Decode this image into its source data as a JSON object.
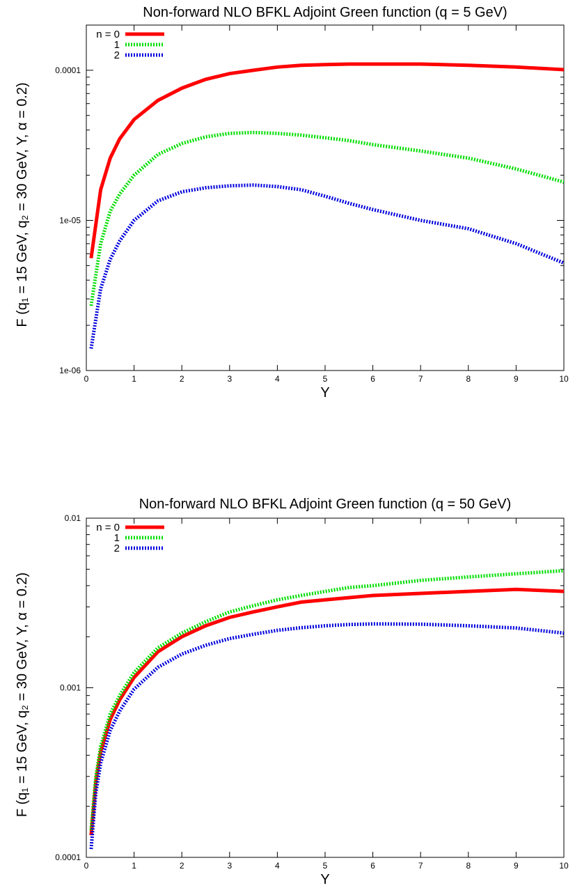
{
  "chart_data": [
    {
      "type": "line",
      "title": "Non-forward NLO BFKL Adjoint Green function (q = 5 GeV)",
      "xlabel": "Y",
      "ylabel": "F (q₁ = 15 GeV, q₂ = 30 GeV, Y, α = 0.2)",
      "xlim": [
        0,
        10
      ],
      "ylim": [
        1e-06,
        0.0002
      ],
      "yscale": "log",
      "grid": false,
      "legend_position": "top-left",
      "xticks": [
        0,
        1,
        2,
        3,
        4,
        5,
        6,
        7,
        8,
        9,
        10
      ],
      "xtick_labels": [
        "0",
        "1",
        "2",
        "3",
        "4",
        "5",
        "6",
        "7",
        "8",
        "9",
        "10"
      ],
      "yticks": [
        1e-06,
        1e-05,
        0.0001
      ],
      "ytick_labels": [
        "1e-06",
        "1e-05",
        "0.0001"
      ],
      "series": [
        {
          "name": "n = 0",
          "color": "#ff0000",
          "style": "solid",
          "x": [
            0.1,
            0.3,
            0.5,
            0.7,
            1.0,
            1.5,
            2.0,
            2.5,
            3.0,
            3.5,
            4.0,
            4.5,
            5.0,
            5.5,
            6.0,
            7.0,
            8.0,
            9.0,
            10.0
          ],
          "y": [
            5.6e-06,
            1.6e-05,
            2.6e-05,
            3.5e-05,
            4.7e-05,
            6.3e-05,
            7.6e-05,
            8.7e-05,
            9.5e-05,
            0.0001,
            0.000105,
            0.000108,
            0.000109,
            0.00011,
            0.00011,
            0.00011,
            0.000108,
            0.000105,
            0.000101
          ]
        },
        {
          "name": "1",
          "color": "#00dd00",
          "style": "dotted",
          "x": [
            0.1,
            0.3,
            0.5,
            0.7,
            1.0,
            1.5,
            2.0,
            2.5,
            3.0,
            3.5,
            4.0,
            4.5,
            5.0,
            5.5,
            6.0,
            7.0,
            8.0,
            9.0,
            10.0
          ],
          "y": [
            2.7e-06,
            7e-06,
            1.15e-05,
            1.5e-05,
            2e-05,
            2.75e-05,
            3.25e-05,
            3.6e-05,
            3.8e-05,
            3.85e-05,
            3.8e-05,
            3.7e-05,
            3.55e-05,
            3.4e-05,
            3.2e-05,
            2.9e-05,
            2.6e-05,
            2.2e-05,
            1.8e-05
          ]
        },
        {
          "name": "2",
          "color": "#0000dd",
          "style": "dotted",
          "x": [
            0.1,
            0.3,
            0.5,
            0.7,
            1.0,
            1.5,
            2.0,
            2.5,
            3.0,
            3.5,
            4.0,
            4.5,
            5.0,
            5.5,
            6.0,
            7.0,
            8.0,
            9.0,
            10.0
          ],
          "y": [
            1.4e-06,
            3.5e-06,
            5.5e-06,
            7.3e-06,
            1e-05,
            1.35e-05,
            1.55e-05,
            1.65e-05,
            1.7e-05,
            1.72e-05,
            1.68e-05,
            1.6e-05,
            1.45e-05,
            1.3e-05,
            1.18e-05,
            1e-05,
            8.8e-06,
            7e-06,
            5.2e-06
          ]
        }
      ]
    },
    {
      "type": "line",
      "title": "Non-forward NLO BFKL Adjoint Green function (q = 50 GeV)",
      "xlabel": "Y",
      "ylabel": "F (q₁ = 15 GeV, q₂ = 30 GeV, Y, α = 0.2)",
      "xlim": [
        0,
        10
      ],
      "ylim": [
        0.0001,
        0.01
      ],
      "yscale": "log",
      "grid": false,
      "legend_position": "top-left",
      "xticks": [
        0,
        1,
        2,
        3,
        4,
        5,
        6,
        7,
        8,
        9,
        10
      ],
      "xtick_labels": [
        "0",
        "1",
        "2",
        "3",
        "4",
        "5",
        "6",
        "7",
        "8",
        "9",
        "10"
      ],
      "yticks": [
        0.0001,
        0.001,
        0.01
      ],
      "ytick_labels": [
        "0.0001",
        "0.001",
        "0.01"
      ],
      "series": [
        {
          "name": "n = 0",
          "color": "#ff0000",
          "style": "solid",
          "x": [
            0.1,
            0.2,
            0.3,
            0.5,
            0.7,
            1.0,
            1.5,
            2.0,
            2.5,
            3.0,
            3.5,
            4.0,
            4.5,
            5.0,
            5.5,
            6.0,
            7.0,
            8.0,
            9.0,
            10.0
          ],
          "y": [
            0.000135,
            0.00028,
            0.00042,
            0.00065,
            0.00085,
            0.00115,
            0.00163,
            0.002,
            0.00232,
            0.0026,
            0.0028,
            0.003,
            0.0032,
            0.0033,
            0.0034,
            0.0035,
            0.0036,
            0.0037,
            0.0038,
            0.0037
          ]
        },
        {
          "name": "1",
          "color": "#00dd00",
          "style": "dotted",
          "x": [
            0.1,
            0.2,
            0.3,
            0.5,
            0.7,
            1.0,
            1.5,
            2.0,
            2.5,
            3.0,
            3.5,
            4.0,
            4.5,
            5.0,
            5.5,
            6.0,
            7.0,
            8.0,
            9.0,
            10.0
          ],
          "y": [
            0.000145,
            0.0003,
            0.00045,
            0.0007,
            0.0009,
            0.00123,
            0.00172,
            0.0021,
            0.00245,
            0.0028,
            0.00305,
            0.0033,
            0.0035,
            0.0037,
            0.0039,
            0.004,
            0.0043,
            0.0045,
            0.0047,
            0.0049
          ]
        },
        {
          "name": "2",
          "color": "#0000dd",
          "style": "dotted",
          "x": [
            0.1,
            0.2,
            0.3,
            0.5,
            0.7,
            1.0,
            1.5,
            2.0,
            2.5,
            3.0,
            3.5,
            4.0,
            4.5,
            5.0,
            5.5,
            6.0,
            7.0,
            8.0,
            9.0,
            10.0
          ],
          "y": [
            0.000112,
            0.00024,
            0.00036,
            0.00056,
            0.00073,
            0.00098,
            0.00132,
            0.00158,
            0.00178,
            0.00195,
            0.00207,
            0.00218,
            0.00226,
            0.00232,
            0.00236,
            0.00238,
            0.00237,
            0.00232,
            0.00225,
            0.0021
          ]
        }
      ]
    }
  ]
}
